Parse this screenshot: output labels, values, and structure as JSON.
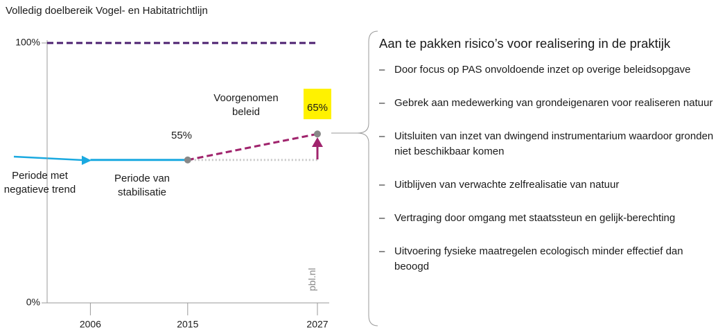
{
  "chart_data": {
    "type": "line",
    "title": "Volledig doelbereik Vogel- en Habitatrichtlijn",
    "xlim": [
      2002,
      2027
    ],
    "xticks": [
      2006,
      2015,
      2027
    ],
    "ylim": [
      0,
      100
    ],
    "yticks": [
      {
        "value": 0,
        "label": "0%"
      },
      {
        "value": 100,
        "label": "100%"
      }
    ],
    "grid": false,
    "series": [
      {
        "color": "#4b1f6f",
        "style": "dashed",
        "x": [
          2002,
          2027
        ],
        "values": [
          100,
          100
        ]
      },
      {
        "name": "Periode van stabilisatie",
        "color": "#1aa9e0",
        "style": "solid",
        "x": [
          2006,
          2015
        ],
        "values": [
          55,
          55
        ]
      },
      {
        "color": "#c8c8c8",
        "style": "dotted",
        "x": [
          2015,
          2027
        ],
        "values": [
          55,
          55
        ]
      },
      {
        "name": "Voorgenomen beleid",
        "color": "#a0246d",
        "style": "dashed",
        "x": [
          2015,
          2027
        ],
        "values": [
          55,
          65
        ],
        "value_labels": [
          "55%",
          "65%"
        ],
        "markers": true
      }
    ],
    "annotations": [
      "Periode met negatieve trend",
      "pbl.nl"
    ]
  },
  "risks": {
    "title": "Aan te pakken risico’s voor realisering in de praktijk",
    "items": [
      "Door focus op PAS onvoldoende inzet op overige beleidsopgave",
      "Gebrek aan medewerking van grondeigenaren voor realiseren natuur",
      "Uitsluiten van inzet van dwingend instrumentarium waardoor gronden niet beschikbaar komen",
      "Uitblijven van verwachte zelfrealisatie van natuur",
      "Vertraging door omgang met staatssteun en gelijk-berechting",
      "Uitvoering fysieke maatregelen ecologisch minder effectief dan beoogd"
    ]
  }
}
